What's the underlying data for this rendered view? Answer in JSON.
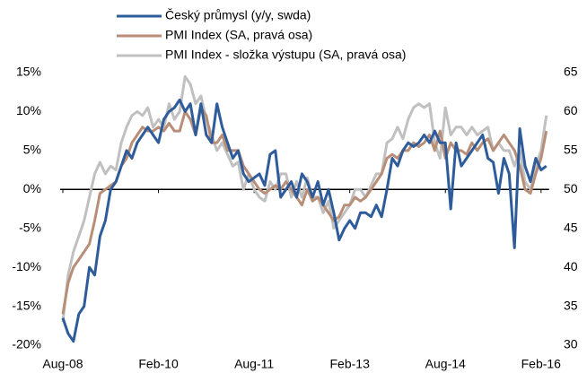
{
  "chart_data": {
    "type": "line",
    "categories": [
      "Aug-08",
      null,
      null,
      null,
      null,
      null,
      null,
      null,
      null,
      null,
      null,
      null,
      null,
      null,
      null,
      null,
      null,
      null,
      "Feb-10",
      null,
      null,
      null,
      null,
      null,
      null,
      null,
      null,
      null,
      null,
      null,
      null,
      null,
      null,
      null,
      null,
      null,
      "Aug-11",
      null,
      null,
      null,
      null,
      null,
      null,
      null,
      null,
      null,
      null,
      null,
      null,
      null,
      null,
      null,
      null,
      null,
      "Feb-13",
      null,
      null,
      null,
      null,
      null,
      null,
      null,
      null,
      null,
      null,
      null,
      null,
      null,
      null,
      null,
      null,
      null,
      "Aug-14",
      null,
      null,
      null,
      null,
      null,
      null,
      null,
      null,
      null,
      null,
      null,
      null,
      null,
      null,
      null,
      null,
      null,
      "Feb-16",
      null
    ],
    "series": [
      {
        "name": "Český průmysl (y/y, swda)",
        "color": "#2e5c9a",
        "axis": "y",
        "values": [
          -16.5,
          -18.5,
          -19.5,
          -16,
          -15,
          -10,
          -11,
          -6,
          -4,
          0,
          1,
          3,
          5,
          4,
          6,
          7,
          8,
          7,
          6,
          9,
          10,
          10.5,
          11.5,
          10,
          11,
          7,
          11,
          7,
          6,
          11,
          8,
          6,
          4,
          5,
          2,
          1,
          1.5,
          2,
          0.5,
          4.5,
          5,
          -1,
          0,
          1,
          -1,
          2,
          1,
          -1,
          1,
          -2,
          0,
          -3,
          -6.5,
          -5,
          -4,
          -5,
          -3,
          -3,
          -3.5,
          -2,
          -3.5,
          0,
          4,
          3,
          5,
          6,
          5.5,
          6,
          7,
          6,
          7.5,
          6,
          6,
          -2.5,
          6,
          3,
          4,
          5,
          6,
          7,
          4,
          3.5,
          -0.5,
          4,
          2,
          -7.5,
          7.8,
          3,
          1,
          4,
          2.5,
          3
        ]
      },
      {
        "name": "PMI Index (SA, pravá osa)",
        "color": "#b88e78",
        "axis": "y2",
        "values": [
          34,
          38,
          40,
          41,
          42,
          43,
          46,
          49.5,
          50,
          50.5,
          51,
          53,
          54,
          56,
          57,
          58,
          57.5,
          57.5,
          58,
          57.5,
          58.5,
          57.5,
          57.5,
          60,
          59,
          57,
          60.5,
          59.5,
          56,
          56,
          57,
          55,
          55,
          55,
          53,
          52,
          51,
          50,
          49.5,
          50,
          50.5,
          50,
          51,
          50,
          49,
          48,
          50,
          48.5,
          49,
          48,
          47,
          46,
          46.5,
          48,
          48,
          49,
          48.5,
          49,
          50,
          51,
          52,
          54,
          54.5,
          54,
          55,
          55,
          56,
          55.5,
          56,
          57,
          55,
          57.5,
          54,
          56,
          55,
          55,
          54.5,
          56,
          55,
          56,
          56.5,
          55,
          56,
          57,
          56,
          55,
          53,
          50,
          49.5,
          52,
          54,
          57.5
        ]
      },
      {
        "name": "PMI Index - složka výstupu (SA, pravá osa)",
        "color": "#c0c0c0",
        "axis": "y2",
        "values": [
          33,
          39,
          42,
          44,
          46,
          49,
          52,
          53.5,
          52,
          53,
          52.5,
          56,
          58,
          59.5,
          60,
          59.5,
          60.5,
          58,
          59,
          58,
          61,
          59,
          60,
          64.5,
          63.5,
          61,
          62,
          59,
          57,
          55,
          56,
          54.5,
          53,
          53.5,
          50,
          52,
          50,
          49,
          48.5,
          51,
          50,
          52,
          52,
          49,
          51,
          49,
          51.5,
          49,
          49,
          47,
          48.5,
          45,
          46,
          47,
          48,
          50,
          50,
          49,
          50.5,
          52,
          52,
          56,
          56.5,
          58,
          56.5,
          59,
          60.5,
          61,
          60.5,
          61,
          56,
          54,
          60.5,
          57,
          58,
          58,
          57,
          58,
          57,
          57.5,
          58,
          55,
          56,
          55,
          55,
          53,
          55,
          51,
          50,
          53,
          55,
          59.5
        ]
      }
    ],
    "ylim": [
      -20,
      15
    ],
    "yticks": [
      {
        "value": -20,
        "label": "-20%"
      },
      {
        "value": -15,
        "label": "-15%"
      },
      {
        "value": -10,
        "label": "-10%"
      },
      {
        "value": -5,
        "label": "-5%"
      },
      {
        "value": 0,
        "label": "0%"
      },
      {
        "value": 5,
        "label": "5%"
      },
      {
        "value": 10,
        "label": "10%"
      },
      {
        "value": 15,
        "label": "15%"
      }
    ],
    "y2lim": [
      30,
      65
    ],
    "y2ticks": [
      30,
      35,
      40,
      45,
      50,
      55,
      60,
      65
    ],
    "grid": false
  }
}
